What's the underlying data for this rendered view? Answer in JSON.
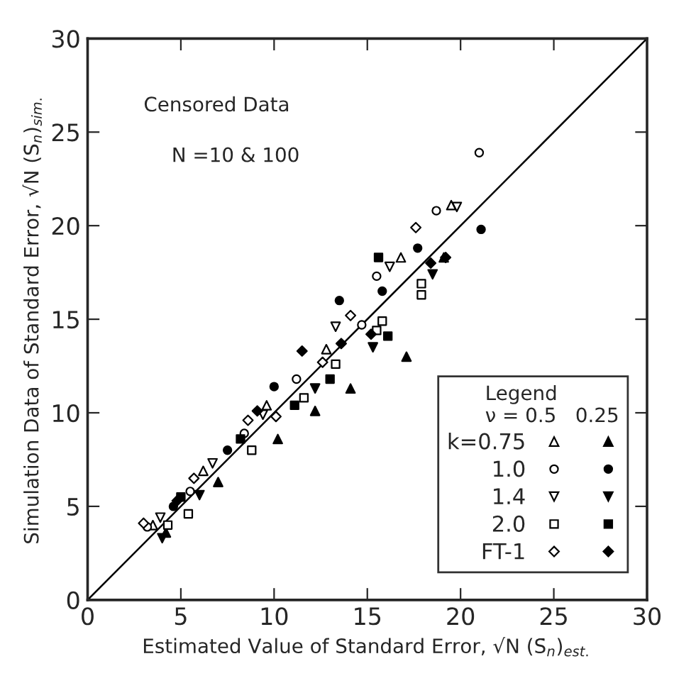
{
  "chart_data": {
    "type": "scatter",
    "xlabel": "Estimated Value of Standard Error, √N (S̄$_{n}$)$_{est.}$",
    "ylabel": "Simulation Data of Standard Error, √N (S̄$_{n}$)$_{sim.}$",
    "legend_title": "Legend\nν = 0.5   0.25",
    "annotations": [
      "Censored Data",
      "N =10 & 100"
    ],
    "xlim": [
      0,
      30
    ],
    "ylim": [
      0,
      30
    ],
    "xticks": [
      0,
      5,
      10,
      15,
      20,
      25,
      30
    ],
    "yticks": [
      0,
      5,
      10,
      15,
      20,
      25,
      30
    ],
    "grid": false,
    "legend": "bottom right",
    "series": [
      {
        "name": "k=0.75",
        "color": "#000000",
        "marker": "triangle-open",
        "x": [
          3.5,
          6.2,
          9.6,
          12.8,
          16.8,
          19.5
        ],
        "values": [
          4.0,
          6.9,
          10.4,
          13.4,
          18.3,
          21.1
        ]
      },
      {
        "color": "#000000",
        "marker": "triangle",
        "x": [
          4.2,
          7.0,
          10.2,
          12.2,
          14.1,
          17.1,
          19.1
        ],
        "values": [
          3.6,
          6.3,
          8.6,
          10.1,
          11.3,
          13.0,
          18.3
        ]
      },
      {
        "name": "1.0",
        "color": "#000000",
        "marker": "circle-open",
        "x": [
          3.2,
          5.5,
          8.4,
          11.2,
          14.7,
          15.5,
          18.7,
          21.0
        ],
        "values": [
          3.9,
          5.8,
          8.9,
          11.8,
          14.7,
          17.3,
          20.8,
          23.9
        ]
      },
      {
        "color": "#000000",
        "marker": "circle",
        "x": [
          4.6,
          7.5,
          10.0,
          13.5,
          15.8,
          17.7,
          21.1
        ],
        "values": [
          5.0,
          8.0,
          11.4,
          16.0,
          16.5,
          18.8,
          19.8
        ]
      },
      {
        "name": "1.4",
        "color": "#000000",
        "marker": "triangle_down-open",
        "x": [
          3.9,
          6.7,
          9.4,
          13.3,
          16.2,
          19.8
        ],
        "values": [
          4.4,
          7.3,
          9.9,
          14.6,
          17.8,
          21.0
        ]
      },
      {
        "color": "#000000",
        "marker": "triangle_down",
        "x": [
          4.0,
          6.0,
          12.2,
          15.3,
          18.5
        ],
        "values": [
          3.3,
          5.6,
          11.3,
          13.5,
          17.4
        ]
      },
      {
        "name": "2.0",
        "color": "#000000",
        "marker": "square-open",
        "x": [
          4.3,
          5.4,
          8.8,
          11.6,
          13.3,
          15.5,
          15.8,
          17.9,
          17.9
        ],
        "values": [
          4.0,
          4.6,
          8.0,
          10.8,
          12.6,
          14.4,
          14.9,
          16.9,
          16.3
        ]
      },
      {
        "color": "#000000",
        "marker": "square",
        "x": [
          5.0,
          8.2,
          11.1,
          13.0,
          15.6,
          16.1
        ],
        "values": [
          5.5,
          8.6,
          10.4,
          11.8,
          18.3,
          14.1
        ]
      },
      {
        "name": "FT-1",
        "color": "#000000",
        "marker": "diamond-open",
        "x": [
          3.0,
          5.7,
          8.6,
          10.1,
          12.6,
          14.1,
          17.6
        ],
        "values": [
          4.1,
          6.5,
          9.6,
          9.8,
          12.7,
          15.2,
          19.9
        ]
      },
      {
        "color": "#000000",
        "marker": "diamond",
        "x": [
          4.8,
          9.1,
          11.5,
          13.6,
          15.2,
          18.4,
          19.2
        ],
        "values": [
          5.3,
          10.1,
          13.3,
          13.7,
          14.2,
          18.0,
          18.3
        ]
      },
      {
        "type": "line",
        "color": "#000000",
        "line_style": "solid",
        "x": [
          0,
          30
        ],
        "values": [
          0,
          30
        ]
      }
    ]
  }
}
